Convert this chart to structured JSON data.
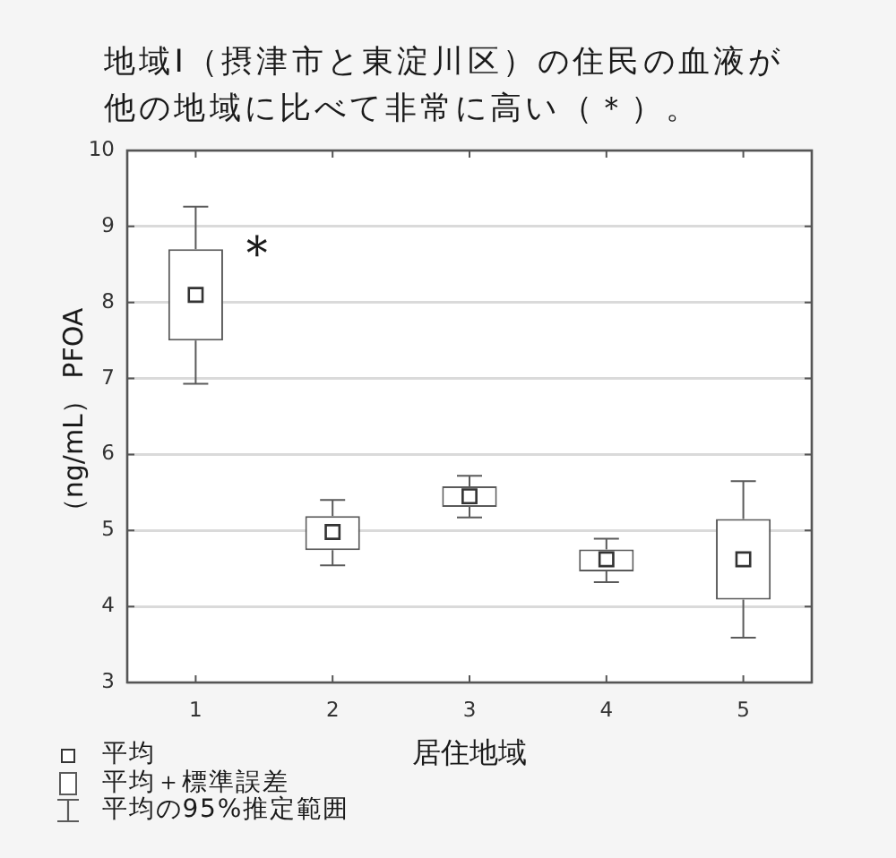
{
  "chart_data": {
    "type": "box",
    "title": "地域Ⅰ（摂津市と東淀川区）の住民の血液が他の地域に比べて非常に高い（＊）。",
    "xlabel": "居住地域",
    "ylabel": "（ng/mL） PFOA",
    "categories": [
      "1",
      "2",
      "3",
      "4",
      "5"
    ],
    "boxes": [
      {
        "low": 6.93,
        "q1": 7.5,
        "q3": 8.7,
        "high": 9.26,
        "mean": 8.1
      },
      {
        "low": 4.54,
        "q1": 4.74,
        "q3": 5.19,
        "high": 5.4,
        "mean": 4.98
      },
      {
        "low": 5.17,
        "q1": 5.31,
        "q3": 5.58,
        "high": 5.72,
        "mean": 5.45
      },
      {
        "low": 4.32,
        "q1": 4.46,
        "q3": 4.75,
        "high": 4.89,
        "mean": 4.62
      },
      {
        "low": 3.59,
        "q1": 4.09,
        "q3": 5.15,
        "high": 5.65,
        "mean": 4.62
      }
    ],
    "color": "#5a5a5a",
    "ylim": [
      3,
      10
    ],
    "yticks": [
      3,
      4,
      5,
      6,
      7,
      8,
      9,
      10
    ],
    "grid": "y",
    "marker": "square",
    "annotations": [
      "平均",
      "平均＋標準誤差",
      "平均の95%推定範囲",
      {
        "text": "＊",
        "x": "1",
        "y": 8.7
      }
    ]
  }
}
